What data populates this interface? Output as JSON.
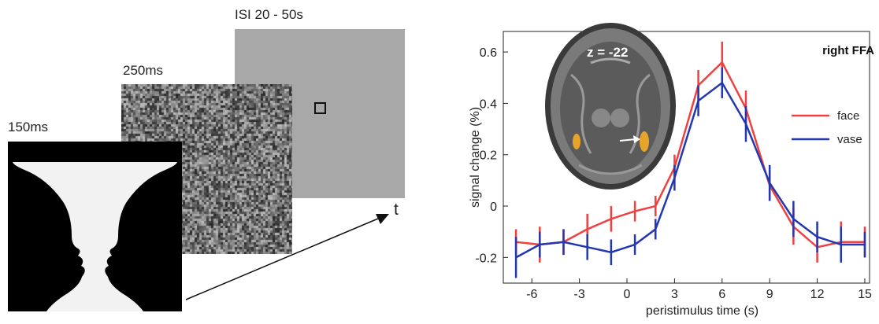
{
  "stimulus": {
    "face_duration_label": "150ms",
    "noise_duration_label": "250ms",
    "isi_label": "ISI 20 - 50s",
    "time_axis_label": "t"
  },
  "chart_data": {
    "type": "line",
    "title": "right FFA",
    "xlabel": "peristimulus time (s)",
    "ylabel": "signal change (%)",
    "xlim": [
      -7.8,
      15.3
    ],
    "ylim": [
      -0.3,
      0.68
    ],
    "xticks": [
      -6,
      -3,
      0,
      3,
      6,
      9,
      12,
      15
    ],
    "xtick_labels": [
      "-6",
      "-3",
      "0",
      "3",
      "6",
      "9",
      "12",
      "15"
    ],
    "yticks": [
      -0.2,
      0,
      0.2,
      0.4,
      0.6
    ],
    "ytick_labels": [
      "-0.2",
      "0",
      "0.2",
      "0.4",
      "0.6"
    ],
    "grid": false,
    "legend_position": "right",
    "inset_label": "z = -22",
    "series": [
      {
        "name": "face",
        "color": "#f04040",
        "x": [
          -7,
          -5.5,
          -4,
          -2.5,
          -1,
          0.5,
          1.8,
          3,
          4.5,
          6,
          7.5,
          9,
          10.5,
          12,
          13.5,
          15
        ],
        "y": [
          -0.14,
          -0.15,
          -0.14,
          -0.09,
          -0.05,
          -0.02,
          0.0,
          0.15,
          0.47,
          0.56,
          0.38,
          0.08,
          -0.08,
          -0.16,
          -0.14,
          -0.14
        ],
        "err": [
          0.05,
          0.07,
          0.05,
          0.06,
          0.05,
          0.04,
          0.04,
          0.05,
          0.06,
          0.08,
          0.07,
          0.06,
          0.07,
          0.06,
          0.08,
          0.06
        ]
      },
      {
        "name": "vase",
        "color": "#2338b0",
        "x": [
          -7,
          -5.5,
          -4,
          -2.5,
          -1,
          0.5,
          1.8,
          3,
          4.5,
          6,
          7.5,
          9,
          10.5,
          12,
          13.5,
          15
        ],
        "y": [
          -0.2,
          -0.15,
          -0.14,
          -0.16,
          -0.18,
          -0.15,
          -0.09,
          0.11,
          0.41,
          0.48,
          0.32,
          0.09,
          -0.05,
          -0.12,
          -0.15,
          -0.15
        ],
        "err": [
          0.08,
          0.05,
          0.05,
          0.05,
          0.05,
          0.04,
          0.04,
          0.05,
          0.06,
          0.06,
          0.07,
          0.07,
          0.07,
          0.06,
          0.07,
          0.05
        ]
      }
    ]
  },
  "colors": {
    "face": "#f04040",
    "vase": "#2338b0",
    "isi_screen": "#a8a8a8"
  }
}
